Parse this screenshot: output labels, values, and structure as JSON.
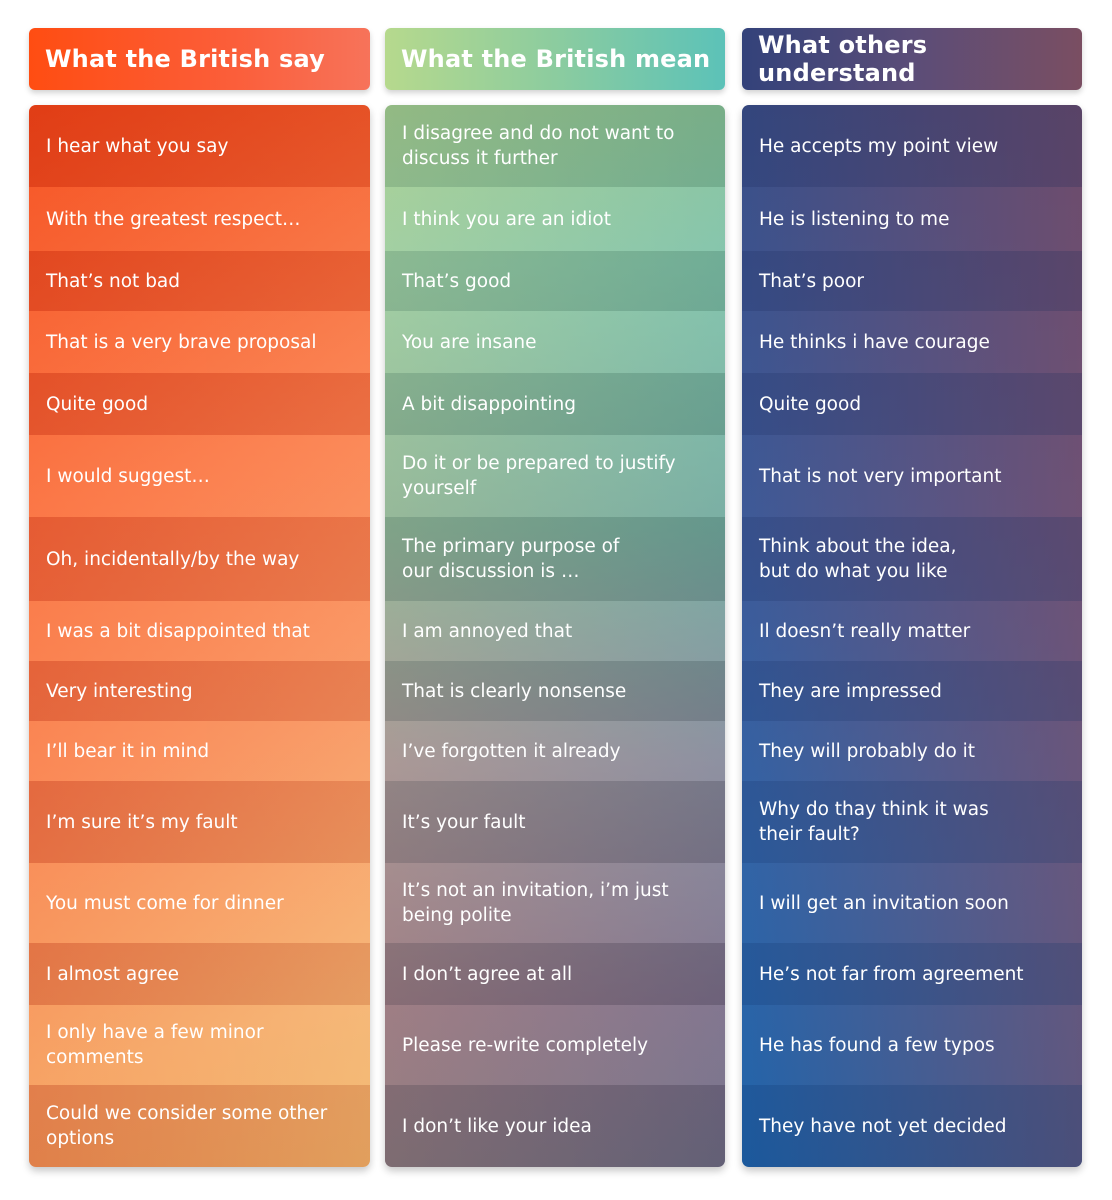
{
  "columns": [
    {
      "title": "What the British say",
      "rows": [
        "I hear what you say",
        "With the greatest respect…",
        "That’s not bad",
        "That is a very brave proposal",
        "Quite good",
        "I would suggest…",
        "Oh, incidentally/by the way",
        "I was a bit disappointed that",
        "Very interesting",
        "I’ll bear it in mind",
        "I’m sure it’s my fault",
        "You must come for dinner",
        "I almost agree",
        "I only have a few minor\ncomments",
        "Could we consider some other\noptions"
      ]
    },
    {
      "title": "What the British mean",
      "rows": [
        "I disagree and do not want to\ndiscuss it further",
        "I think you are an idiot",
        "That’s good",
        "You are insane",
        "A bit disappointing",
        "Do it or be prepared to justify\nyourself",
        "The primary purpose of\nour discussion is …",
        "I am annoyed that",
        "That is clearly nonsense",
        "I’ve forgotten it already",
        "It’s your fault",
        "It’s not an invitation, i’m just\nbeing polite",
        "I don’t agree at all",
        "Please re-write completely",
        "I don’t like your idea"
      ]
    },
    {
      "title": "What others understand",
      "rows": [
        "He accepts my point view",
        "He is listening to me",
        "That’s poor",
        "He thinks i have courage",
        "Quite good",
        "That is not very important",
        "Think about the idea,\n but do what you like",
        "Il doesn’t really matter",
        "They are impressed",
        "They will probably do it",
        "Why do thay think it was\ntheir  fault?",
        "I will get an invitation soon",
        "He’s not far from agreement",
        "He has found a few typos",
        "They have not yet decided"
      ]
    }
  ]
}
